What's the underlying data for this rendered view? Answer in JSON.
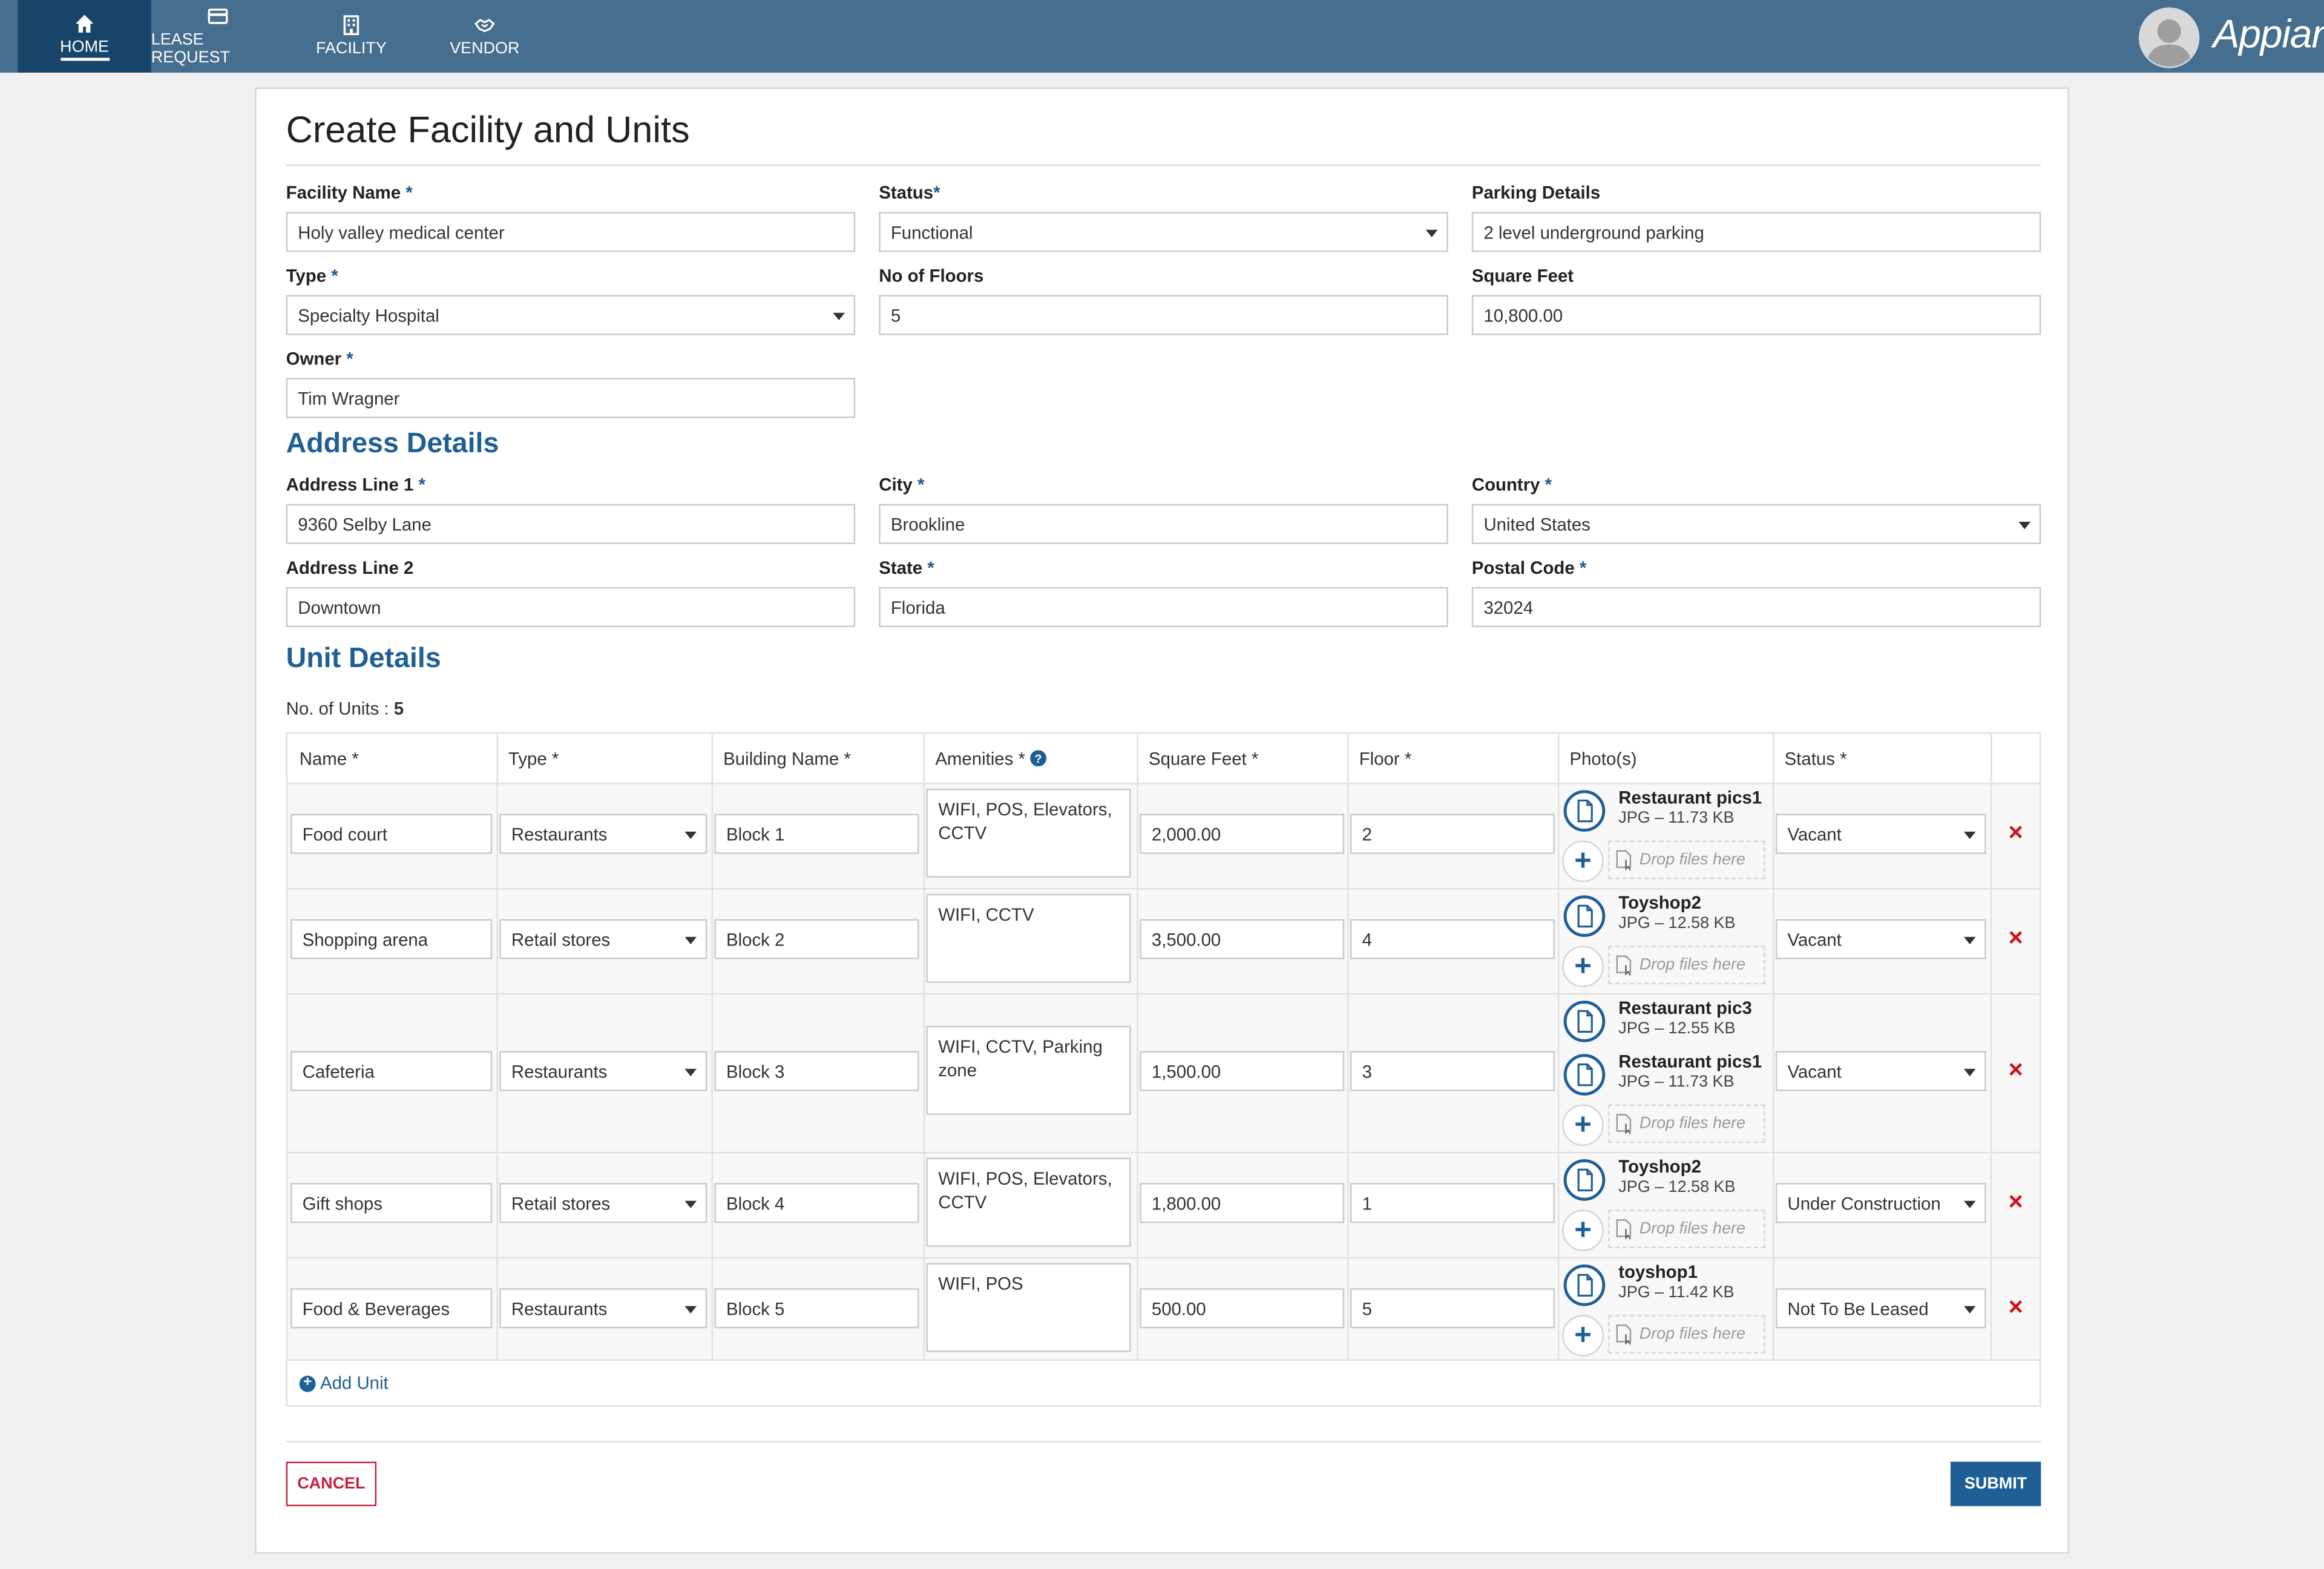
{
  "colors": {
    "topbar": "#466e8f",
    "nav_active": "#19456b",
    "accent": "#1f5f95",
    "danger": "#d0111b",
    "cancel": "#c5203f"
  },
  "nav": {
    "items": [
      {
        "label": "HOME",
        "icon": "home-icon",
        "active": true
      },
      {
        "label": "LEASE REQUEST",
        "icon": "credit-card-icon"
      },
      {
        "label": "FACILITY",
        "icon": "building-icon"
      },
      {
        "label": "VENDOR",
        "icon": "handshake-icon"
      }
    ],
    "brand": "Appian"
  },
  "page": {
    "title": "Create Facility and Units"
  },
  "facility": {
    "name": {
      "label": "Facility Name",
      "value": "Holy valley medical center"
    },
    "status": {
      "label": "Status",
      "value": "Functional"
    },
    "parking": {
      "label": "Parking Details",
      "value": "2 level underground parking"
    },
    "type": {
      "label": "Type",
      "value": "Specialty Hospital"
    },
    "floors": {
      "label": "No of Floors",
      "value": "5"
    },
    "sqft": {
      "label": "Square Feet",
      "value": "10,800.00"
    },
    "owner": {
      "label": "Owner",
      "value": "Tim Wragner"
    }
  },
  "address": {
    "title": "Address Details",
    "line1": {
      "label": "Address Line 1",
      "value": "9360 Selby Lane"
    },
    "city": {
      "label": "City",
      "value": "Brookline"
    },
    "country": {
      "label": "Country",
      "value": "United States"
    },
    "line2": {
      "label": "Address Line 2",
      "value": "Downtown"
    },
    "state": {
      "label": "State",
      "value": "Florida"
    },
    "postal": {
      "label": "Postal Code",
      "value": "32024"
    }
  },
  "units": {
    "title": "Unit Details",
    "count_label": "No. of Units :",
    "count": "5",
    "columns": [
      "Name *",
      "Type *",
      "Building Name *",
      "Amenities *",
      "Square Feet *",
      "Floor *",
      "Photo(s)",
      "Status *"
    ],
    "drop_text": "Drop files here",
    "add_label": "Add Unit",
    "rows": [
      {
        "name": "Food court",
        "type": "Restaurants",
        "building": "Block 1",
        "amenities": "WIFI, POS, Elevators, CCTV",
        "sqft": "2,000.00",
        "floor": "2",
        "status": "Vacant",
        "photos": [
          {
            "name": "Restaurant pics1",
            "meta": "JPG – 11.73 KB"
          }
        ]
      },
      {
        "name": "Shopping arena",
        "type": "Retail stores",
        "building": "Block 2",
        "amenities": "WIFI, CCTV",
        "sqft": "3,500.00",
        "floor": "4",
        "status": "Vacant",
        "photos": [
          {
            "name": "Toyshop2",
            "meta": "JPG – 12.58 KB"
          }
        ]
      },
      {
        "name": "Cafeteria",
        "type": "Restaurants",
        "building": "Block 3",
        "amenities": "WIFI, CCTV, Parking zone",
        "sqft": "1,500.00",
        "floor": "3",
        "status": "Vacant",
        "photos": [
          {
            "name": "Restaurant pic3",
            "meta": "JPG – 12.55 KB"
          },
          {
            "name": "Restaurant pics1",
            "meta": "JPG – 11.73 KB"
          }
        ]
      },
      {
        "name": "Gift shops",
        "type": "Retail stores",
        "building": "Block 4",
        "amenities": "WIFI, POS, Elevators, CCTV",
        "sqft": "1,800.00",
        "floor": "1",
        "status": "Under Construction",
        "photos": [
          {
            "name": "Toyshop2",
            "meta": "JPG – 12.58 KB"
          }
        ]
      },
      {
        "name": "Food & Beverages",
        "type": "Restaurants",
        "building": "Block 5",
        "amenities": "WIFI, POS",
        "sqft": "500.00",
        "floor": "5",
        "status": "Not To Be Leased",
        "photos": [
          {
            "name": "toyshop1",
            "meta": "JPG – 11.42 KB"
          }
        ]
      }
    ]
  },
  "actions": {
    "cancel": "CANCEL",
    "submit": "SUBMIT"
  }
}
